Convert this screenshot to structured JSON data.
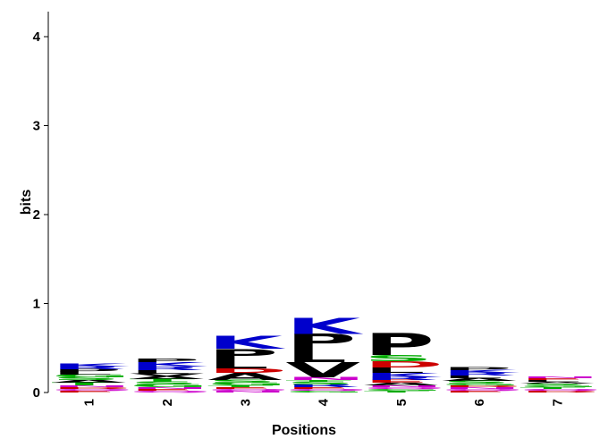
{
  "chart_data": {
    "type": "sequence_logo",
    "xlabel": "Positions",
    "ylabel": "bits",
    "ylim": [
      0,
      4.3
    ],
    "yticks": [
      0,
      1,
      2,
      3,
      4
    ],
    "positions": [
      "1",
      "2",
      "3",
      "4",
      "5",
      "6",
      "7"
    ],
    "colors": {
      "K": "#0000cc",
      "R": "#0000cc",
      "H": "#0000cc",
      "P": "#000000",
      "L": "#000000",
      "V": "#000000",
      "I": "#000000",
      "A": "#000000",
      "M": "#000000",
      "F": "#000000",
      "W": "#000000",
      "G": "#00aa00",
      "S": "#00aa00",
      "T": "#00aa00",
      "Y": "#00aa00",
      "C": "#00aa00",
      "D": "#cc0000",
      "E": "#cc0000",
      "N": "#cc00cc",
      "Q": "#cc00cc"
    },
    "stacks": [
      {
        "position": "1",
        "total": 0.32,
        "letters": [
          {
            "letter": "E",
            "height": 0.02
          },
          {
            "letter": "Q",
            "height": 0.02
          },
          {
            "letter": "D",
            "height": 0.02
          },
          {
            "letter": "N",
            "height": 0.02
          },
          {
            "letter": "T",
            "height": 0.03
          },
          {
            "letter": "A",
            "height": 0.03
          },
          {
            "letter": "S",
            "height": 0.03
          },
          {
            "letter": "G",
            "height": 0.03
          },
          {
            "letter": "L",
            "height": 0.03
          },
          {
            "letter": "P",
            "height": 0.03
          },
          {
            "letter": "R",
            "height": 0.03
          },
          {
            "letter": "K",
            "height": 0.03
          }
        ]
      },
      {
        "position": "2",
        "total": 0.4,
        "letters": [
          {
            "letter": "Q",
            "height": 0.02
          },
          {
            "letter": "E",
            "height": 0.02
          },
          {
            "letter": "N",
            "height": 0.02
          },
          {
            "letter": "G",
            "height": 0.03
          },
          {
            "letter": "S",
            "height": 0.03
          },
          {
            "letter": "T",
            "height": 0.03
          },
          {
            "letter": "A",
            "height": 0.03
          },
          {
            "letter": "V",
            "height": 0.03
          },
          {
            "letter": "L",
            "height": 0.04
          },
          {
            "letter": "R",
            "height": 0.04
          },
          {
            "letter": "K",
            "height": 0.05
          },
          {
            "letter": "P",
            "height": 0.04
          }
        ]
      },
      {
        "position": "3",
        "total": 0.73,
        "letters": [
          {
            "letter": "N",
            "height": 0.02
          },
          {
            "letter": "Q",
            "height": 0.02
          },
          {
            "letter": "E",
            "height": 0.02
          },
          {
            "letter": "T",
            "height": 0.02
          },
          {
            "letter": "G",
            "height": 0.03
          },
          {
            "letter": "S",
            "height": 0.03
          },
          {
            "letter": "A",
            "height": 0.08
          },
          {
            "letter": "D",
            "height": 0.05
          },
          {
            "letter": "L",
            "height": 0.1
          },
          {
            "letter": "P",
            "height": 0.12
          },
          {
            "letter": "K",
            "height": 0.14
          }
        ]
      },
      {
        "position": "4",
        "total": 0.92,
        "letters": [
          {
            "letter": "G",
            "height": 0.02
          },
          {
            "letter": "Q",
            "height": 0.02
          },
          {
            "letter": "E",
            "height": 0.02
          },
          {
            "letter": "R",
            "height": 0.03
          },
          {
            "letter": "S",
            "height": 0.03
          },
          {
            "letter": "T",
            "height": 0.02
          },
          {
            "letter": "N",
            "height": 0.03
          },
          {
            "letter": "V",
            "height": 0.17
          },
          {
            "letter": "L",
            "height": 0.15
          },
          {
            "letter": "P",
            "height": 0.17
          },
          {
            "letter": "K",
            "height": 0.18
          }
        ]
      },
      {
        "position": "5",
        "total": 0.8,
        "letters": [
          {
            "letter": "T",
            "height": 0.02
          },
          {
            "letter": "G",
            "height": 0.02
          },
          {
            "letter": "Q",
            "height": 0.02
          },
          {
            "letter": "N",
            "height": 0.02
          },
          {
            "letter": "A",
            "height": 0.03
          },
          {
            "letter": "E",
            "height": 0.03
          },
          {
            "letter": "R",
            "height": 0.03
          },
          {
            "letter": "K",
            "height": 0.05
          },
          {
            "letter": "L",
            "height": 0.06
          },
          {
            "letter": "D",
            "height": 0.07
          },
          {
            "letter": "S",
            "height": 0.07
          },
          {
            "letter": "P",
            "height": 0.25
          }
        ]
      },
      {
        "position": "6",
        "total": 0.31,
        "letters": [
          {
            "letter": "E",
            "height": 0.02
          },
          {
            "letter": "Q",
            "height": 0.02
          },
          {
            "letter": "N",
            "height": 0.02
          },
          {
            "letter": "D",
            "height": 0.02
          },
          {
            "letter": "G",
            "height": 0.02
          },
          {
            "letter": "S",
            "height": 0.03
          },
          {
            "letter": "A",
            "height": 0.03
          },
          {
            "letter": "L",
            "height": 0.03
          },
          {
            "letter": "R",
            "height": 0.03
          },
          {
            "letter": "K",
            "height": 0.03
          },
          {
            "letter": "P",
            "height": 0.03
          }
        ]
      },
      {
        "position": "7",
        "total": 0.23,
        "letters": [
          {
            "letter": "D",
            "height": 0.02
          },
          {
            "letter": "Q",
            "height": 0.02
          },
          {
            "letter": "T",
            "height": 0.02
          },
          {
            "letter": "G",
            "height": 0.02
          },
          {
            "letter": "S",
            "height": 0.02
          },
          {
            "letter": "A",
            "height": 0.02
          },
          {
            "letter": "L",
            "height": 0.02
          },
          {
            "letter": "E",
            "height": 0.02
          },
          {
            "letter": "N",
            "height": 0.02
          }
        ]
      }
    ]
  }
}
